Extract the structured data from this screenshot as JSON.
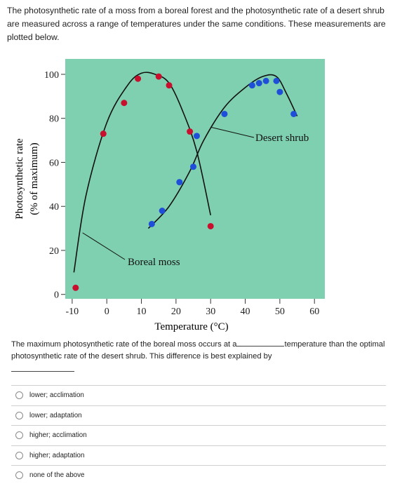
{
  "intro_text": "The photosynthetic rate of a moss from a boreal forest and the photosynthetic rate of a desert shrub are measured across a range of temperatures under the same conditions. These measurements are plotted below.",
  "chart_data": {
    "type": "scatter",
    "title": "",
    "xlabel": "Temperature (°C)",
    "ylabel_line1": "Photosynthetic rate",
    "ylabel_line2": "(% of maximum)",
    "xlim": [
      -12,
      63
    ],
    "ylim": [
      -2,
      107
    ],
    "x_ticks": [
      -10,
      0,
      10,
      20,
      30,
      40,
      50,
      60
    ],
    "y_ticks": [
      0,
      20,
      40,
      60,
      80,
      100
    ],
    "grid": false,
    "plot_background": "#7ed0b0",
    "series": [
      {
        "name": "Boreal moss",
        "color": "#c8102e",
        "points": [
          [
            -9,
            3
          ],
          [
            -1,
            73
          ],
          [
            5,
            87
          ],
          [
            9,
            98
          ],
          [
            15,
            99
          ],
          [
            18,
            95
          ],
          [
            24,
            74
          ],
          [
            30,
            31
          ]
        ],
        "curve": [
          [
            -9.5,
            10
          ],
          [
            -6,
            45
          ],
          [
            0,
            78
          ],
          [
            6,
            95
          ],
          [
            10,
            100.5
          ],
          [
            14,
            100
          ],
          [
            18,
            96
          ],
          [
            22,
            83
          ],
          [
            26,
            65
          ],
          [
            30,
            36
          ]
        ]
      },
      {
        "name": "Desert shrub",
        "color": "#1f4fd8",
        "points": [
          [
            13,
            32
          ],
          [
            16,
            38
          ],
          [
            21,
            51
          ],
          [
            25,
            58
          ],
          [
            26,
            72
          ],
          [
            34,
            82
          ],
          [
            42,
            95
          ],
          [
            44,
            96
          ],
          [
            46,
            97
          ],
          [
            49,
            97
          ],
          [
            50,
            92
          ],
          [
            54,
            82
          ]
        ],
        "curve": [
          [
            12,
            30
          ],
          [
            18,
            40
          ],
          [
            24,
            56
          ],
          [
            28,
            70
          ],
          [
            34,
            85
          ],
          [
            40,
            94
          ],
          [
            45,
            99
          ],
          [
            49,
            99
          ],
          [
            52,
            91
          ],
          [
            55,
            81
          ]
        ]
      }
    ],
    "annotations": [
      {
        "text": "Desert shrub",
        "target": [
          30,
          76
        ]
      },
      {
        "text": "Boreal moss",
        "target": [
          -7,
          28
        ]
      }
    ]
  },
  "question": {
    "part1": "The maximum photosynthetic rate of the boreal moss occurs at a",
    "part2": "temperature than the optimal photosynthetic rate of the desert shrub. This difference is best explained by"
  },
  "options": [
    {
      "label": "lower; acclimation"
    },
    {
      "label": "lower; adaptation"
    },
    {
      "label": "higher; acclimation"
    },
    {
      "label": "higher; adaptation"
    },
    {
      "label": "none of the above"
    }
  ]
}
